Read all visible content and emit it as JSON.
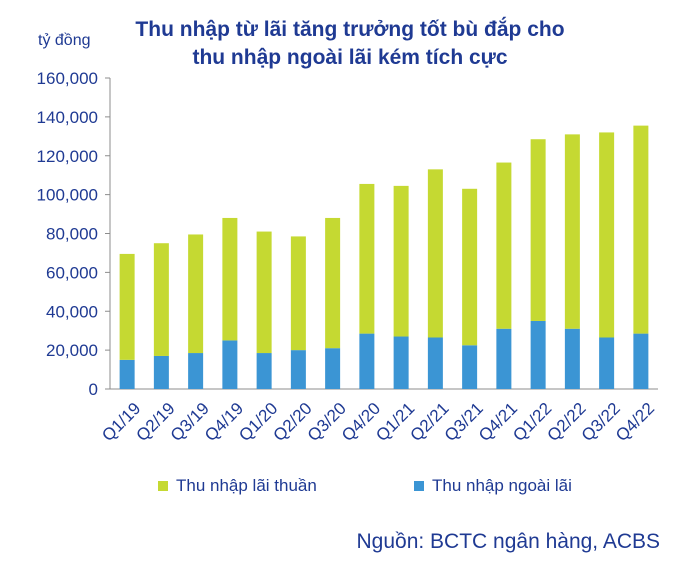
{
  "title_line1": "Thu nhập từ lãi tăng trưởng tốt bù đắp cho",
  "title_line2": "thu nhập ngoài lãi kém tích cực",
  "unit_label": "tỷ đồng",
  "source": "Nguồn: BCTC ngân hàng, ACBS",
  "colors": {
    "net_interest": "#c5d932",
    "non_interest": "#3b95d4",
    "text": "#1f3a93"
  },
  "chart_data": {
    "type": "bar",
    "stacked": true,
    "title": "Thu nhập từ lãi tăng trưởng tốt bù đắp cho thu nhập ngoài lãi kém tích cực",
    "ylabel": "tỷ đồng",
    "ylim": [
      0,
      160000
    ],
    "yticks": [
      "0",
      "20,000",
      "40,000",
      "60,000",
      "80,000",
      "100,000",
      "120,000",
      "140,000",
      "160,000"
    ],
    "categories": [
      "Q1/19",
      "Q2/19",
      "Q3/19",
      "Q4/19",
      "Q1/20",
      "Q2/20",
      "Q3/20",
      "Q4/20",
      "Q1/21",
      "Q2/21",
      "Q3/21",
      "Q4/21",
      "Q1/22",
      "Q2/22",
      "Q3/22",
      "Q4/22"
    ],
    "legend_position": "bottom",
    "grid": false,
    "series": [
      {
        "name": "Thu nhập ngoài lãi",
        "values": [
          15000,
          17000,
          18500,
          25000,
          18500,
          20000,
          21000,
          28500,
          27000,
          26500,
          22500,
          31000,
          35000,
          31000,
          26500,
          28500
        ]
      },
      {
        "name": "Thu nhập lãi thuần",
        "values": [
          54500,
          58000,
          61000,
          63000,
          62500,
          58500,
          67000,
          77000,
          77500,
          86500,
          80500,
          85500,
          93500,
          100000,
          105500,
          107000
        ]
      }
    ]
  }
}
